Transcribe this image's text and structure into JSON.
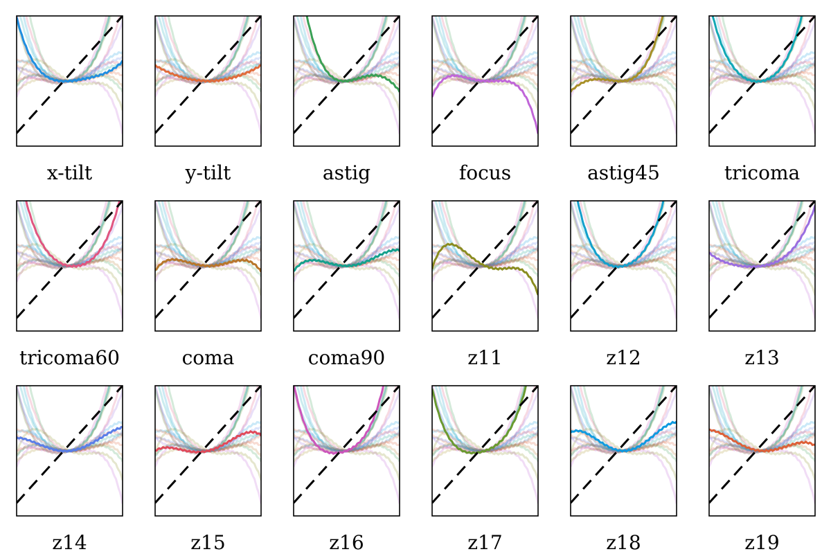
{
  "chart_data": {
    "type": "line",
    "layout": {
      "rows": 3,
      "cols": 6
    },
    "panel_xlim": [
      -1,
      1
    ],
    "panel_ylim": [
      -1.25,
      1.25
    ],
    "reference_line": {
      "style": "dashed",
      "color": "#000000",
      "slope": 1,
      "intercept": 0
    },
    "faint_curve_opacity": 0.22,
    "grid": false,
    "axis_ticks": false,
    "panels": [
      {
        "label": "x-tilt",
        "color": "#1f8fe0",
        "coeffs": [
          0.08,
          0.35,
          -0.5,
          0.45
        ]
      },
      {
        "label": "y-tilt",
        "color": "#e06b3a",
        "coeffs": [
          0.0,
          0.3,
          0.0,
          0.0
        ]
      },
      {
        "label": "astig",
        "color": "#3aa055",
        "coeffs": [
          0.1,
          0.95,
          -1.6,
          0.35
        ]
      },
      {
        "label": "focus",
        "color": "#c066d8",
        "coeffs": [
          -0.05,
          0.4,
          -0.3,
          -1.05
        ]
      },
      {
        "label": "astig45",
        "color": "#a89028",
        "coeffs": [
          0.1,
          0.95,
          1.4,
          0.35
        ]
      },
      {
        "label": "tricoma",
        "color": "#11a8b5",
        "coeffs": [
          0.2,
          1.2,
          0.35,
          0.9
        ]
      },
      {
        "label": "tricoma60",
        "color": "#e05580",
        "coeffs": [
          -0.15,
          1.0,
          -0.15,
          0.8
        ]
      },
      {
        "label": "coma",
        "color": "#b8762a",
        "coeffs": [
          -0.01,
          0.55,
          0.0,
          -0.65
        ]
      },
      {
        "label": "coma90",
        "color": "#14a08c",
        "coeffs": [
          0.0,
          0.6,
          0.2,
          -0.5
        ]
      },
      {
        "label": "z11",
        "color": "#8a8c20",
        "coeffs": [
          -0.45,
          0.95,
          0.2,
          -1.25
        ]
      },
      {
        "label": "z12",
        "color": "#14a0cc",
        "coeffs": [
          0.25,
          1.1,
          0.1,
          1.25
        ]
      },
      {
        "label": "z13",
        "color": "#9a6ee0",
        "coeffs": [
          0.15,
          0.45,
          0.3,
          0.25
        ]
      },
      {
        "label": "z14",
        "color": "#5a7ee8",
        "coeffs": [
          0.1,
          0.65,
          0.0,
          -0.3
        ]
      },
      {
        "label": "z15",
        "color": "#e04a5a",
        "coeffs": [
          0.25,
          0.65,
          -0.1,
          -0.5
        ]
      },
      {
        "label": "z16",
        "color": "#cc55bb",
        "coeffs": [
          0.4,
          0.95,
          0.6,
          1.35
        ]
      },
      {
        "label": "z17",
        "color": "#6a9a30",
        "coeffs": [
          0.35,
          0.75,
          0.3,
          1.1
        ]
      },
      {
        "label": "z18",
        "color": "#0f9ae0",
        "coeffs": [
          0.0,
          1.05,
          0.1,
          -0.6
        ]
      },
      {
        "label": "z19",
        "color": "#dd6038",
        "coeffs": [
          -0.05,
          0.65,
          -0.1,
          -0.4
        ]
      }
    ]
  }
}
